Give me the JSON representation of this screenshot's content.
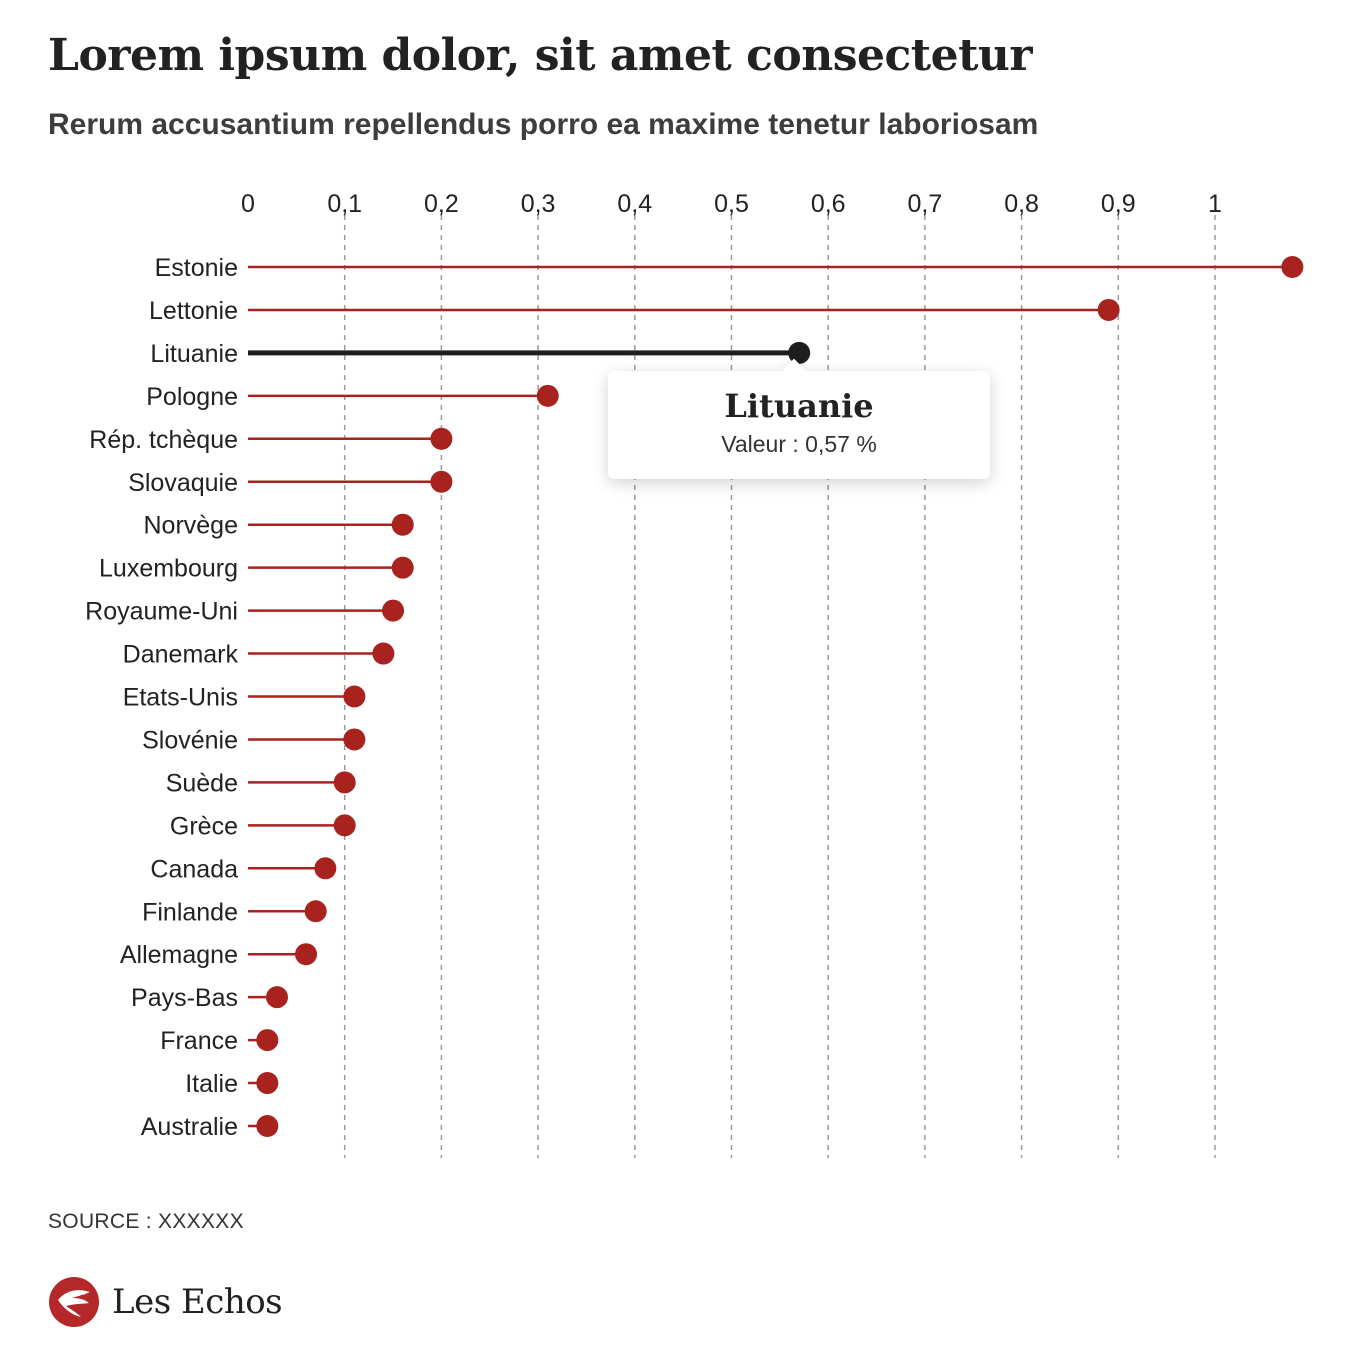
{
  "header": {
    "title": "Lorem ipsum dolor, sit amet consectetur",
    "subtitle": "Rerum accusantium repellendus porro ea maxime tenetur laboriosam"
  },
  "footer": {
    "source": "SOURCE : XXXXXX",
    "brand": "Les Echos"
  },
  "tooltip": {
    "title": "Lituanie",
    "value_text": "Valeur : 0,57 %"
  },
  "colors": {
    "series": "#a8221e",
    "highlight": "#1e1e1e",
    "grid": "#9a9a9a",
    "brand": "#b5282a"
  },
  "chart_data": {
    "type": "lollipop",
    "orientation": "horizontal",
    "title": "Lorem ipsum dolor, sit amet consectetur",
    "subtitle": "Rerum accusantium repellendus porro ea maxime tenetur laboriosam",
    "xlim": [
      0,
      1.08
    ],
    "x_ticks": [
      0,
      0.1,
      0.2,
      0.3,
      0.4,
      0.5,
      0.6,
      0.7,
      0.8,
      0.9,
      1
    ],
    "x_tick_labels": [
      "0",
      "0,1",
      "0,2",
      "0,3",
      "0,4",
      "0,5",
      "0,6",
      "0,7",
      "0,8",
      "0,9",
      "1"
    ],
    "grid": "vertical dashed",
    "unit": "%",
    "highlighted": "Lituanie",
    "categories": [
      "Estonie",
      "Lettonie",
      "Lituanie",
      "Pologne",
      "Rép. tchèque",
      "Slovaquie",
      "Norvège",
      "Luxembourg",
      "Royaume-Uni",
      "Danemark",
      "Etats-Unis",
      "Slovénie",
      "Suède",
      "Grèce",
      "Canada",
      "Finlande",
      "Allemagne",
      "Pays-Bas",
      "France",
      "Italie",
      "Australie"
    ],
    "values": [
      1.08,
      0.89,
      0.57,
      0.31,
      0.2,
      0.2,
      0.16,
      0.16,
      0.15,
      0.14,
      0.11,
      0.11,
      0.1,
      0.1,
      0.08,
      0.07,
      0.06,
      0.03,
      0.02,
      0.02,
      0.02
    ]
  }
}
